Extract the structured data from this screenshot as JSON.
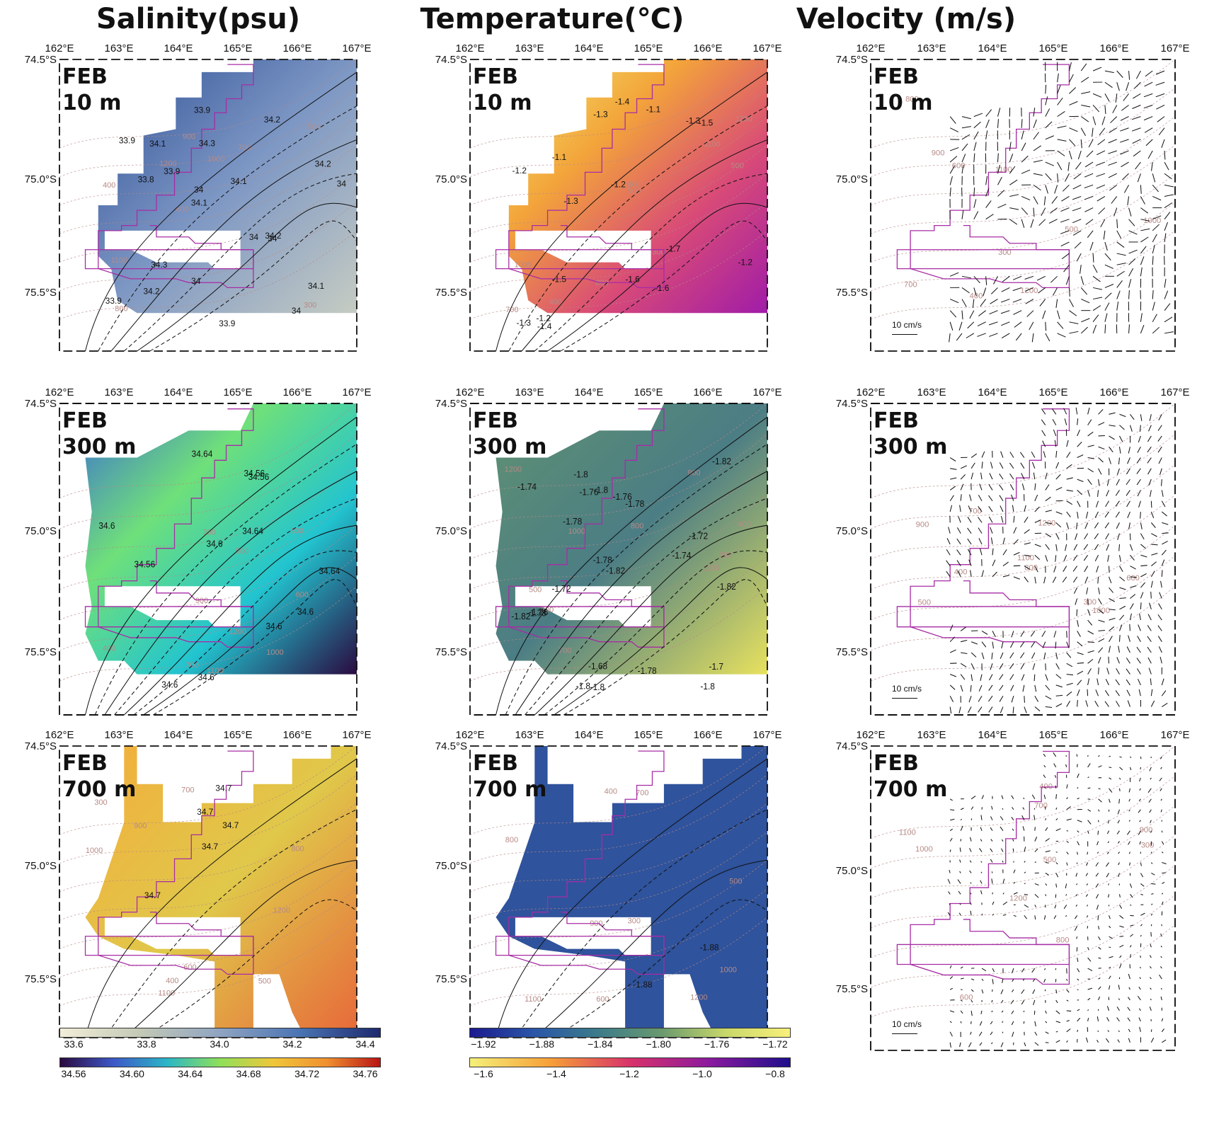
{
  "column_titles": [
    "Salinity(psu)",
    "Temperature(℃)",
    "Velocity (m/s)"
  ],
  "longitude_labels": [
    "162°E",
    "163°E",
    "164°E",
    "165°E",
    "166°E",
    "167°E"
  ],
  "latitude_labels": [
    "74.5°S",
    "75.0°S",
    "75.5°S"
  ],
  "month": "FEB",
  "depths": [
    "10 m",
    "300 m",
    "700 m"
  ],
  "scale_label": "10 cm/s",
  "contour_labels": {
    "sal_10": [
      "33.9",
      "34.2",
      "34.3",
      "34.1",
      "34",
      "33.9",
      "33.9",
      "34",
      "34",
      "34.2",
      "34.1",
      "34",
      "34",
      "34.1",
      "34.2",
      "34.3",
      "34",
      "34.1",
      "34.2",
      "33.9",
      "33.9",
      "33.8"
    ],
    "sal_300": [
      "34.64",
      "34.64",
      "34.64",
      "34.6",
      "34.6",
      "34.6",
      "34.6",
      "34.6",
      "34.56",
      "34.56",
      "34.56",
      "34.6"
    ],
    "sal_700": [
      "34.7",
      "34.7",
      "34.7",
      "34.7",
      "34.7"
    ],
    "tmp_10": [
      "-1.7",
      "-1.6",
      "-1.5",
      "-1.4",
      "-1.3",
      "-1.6",
      "-1.5",
      "-1.4",
      "-1.3",
      "-1.2",
      "-1.1",
      "-1.3",
      "-1.2",
      "-1.1",
      "-1.3",
      "-1.2",
      "-1.2"
    ],
    "tmp_300": [
      "-1.76",
      "-1.78",
      "-1.8",
      "-1.82",
      "-1.82",
      "-1.82",
      "-1.8",
      "-1.8",
      "-1.78",
      "-1.8",
      "-1.78",
      "-1.76",
      "-1.74",
      "-1.72",
      "-1.7",
      "-1.68",
      "-1.72",
      "-1.74",
      "-1.76",
      "-1.78",
      "-1.78",
      "-1.8",
      "-1.82"
    ],
    "tmp_700": [
      "-1.88",
      "-1.88"
    ]
  },
  "bathymetry_labels": [
    "300",
    "400",
    "500",
    "600",
    "700",
    "800",
    "900",
    "1000",
    "1100",
    "1200"
  ],
  "colorbars": {
    "salinity_10": {
      "ticks": [
        "33.6",
        "33.8",
        "34.0",
        "34.2",
        "34.4"
      ],
      "colors": [
        "#f2eed8",
        "#c3c9b6",
        "#8fa4c2",
        "#4a73b3",
        "#1e2a6e"
      ]
    },
    "salinity_deep": {
      "ticks": [
        "34.56",
        "34.60",
        "34.64",
        "34.68",
        "34.72",
        "34.76"
      ],
      "colors": [
        "#2b0b3f",
        "#3d58c7",
        "#2bb6c6",
        "#8fe05a",
        "#f0c63a",
        "#f09030",
        "#b81515"
      ]
    },
    "temperature_deep": {
      "ticks": [
        "−1.92",
        "−1.88",
        "−1.84",
        "−1.80",
        "−1.76",
        "−1.72"
      ],
      "colors": [
        "#1c1a8f",
        "#2a56a8",
        "#3b7b8a",
        "#6a9a6e",
        "#c9d86a",
        "#f8f07a"
      ]
    },
    "temperature_10": {
      "ticks": [
        "−1.6",
        "−1.4",
        "−1.2",
        "−1.0",
        "−0.8"
      ],
      "colors": [
        "#f5f07a",
        "#f7a038",
        "#d8326a",
        "#8a1a9e",
        "#1e0f8c"
      ]
    }
  },
  "panel_fills": {
    "sal_10": [
      "#2e4f96",
      "#7d97c4",
      "#c6ccc3"
    ],
    "sal_300": [
      "#3c6fd0",
      "#6fe07a",
      "#22c4d0",
      "#2a0a40"
    ],
    "sal_700": [
      "#f3ad3c",
      "#e0c84a",
      "#e7683a"
    ],
    "tmp_10": [
      "#f2ea70",
      "#f3a43a",
      "#d84a78",
      "#a01ca8"
    ],
    "tmp_300": [
      "#5f9172",
      "#4b7d85",
      "#e7e15e"
    ],
    "tmp_700": [
      "#2f539c"
    ]
  },
  "colors": {
    "land_border": "#a72ca5",
    "bathymetry": "#b78a86",
    "contour": "#111111"
  }
}
